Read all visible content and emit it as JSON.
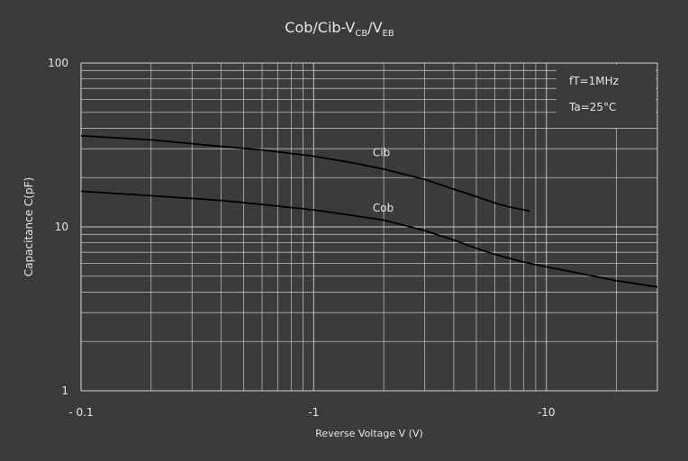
{
  "chart_data": {
    "type": "line",
    "title": "Cob/Cib-V",
    "title_sub1": "CB",
    "title_mid": "/V",
    "title_sub2": "EB",
    "ylabel": "Capacitance  C(pF)",
    "xlabel": "Reverse Voltage  V (V)",
    "x_scale": "log",
    "y_scale": "log",
    "xlim": [
      -0.1,
      -30
    ],
    "ylim": [
      1,
      100
    ],
    "x_ticks": [
      "- 0.1",
      "-1",
      "-10"
    ],
    "y_ticks": [
      "100",
      "10",
      "1"
    ],
    "grid": true,
    "annotations": [
      "fT=1MHz",
      "Ta=25°C"
    ],
    "footnote": "",
    "series": [
      {
        "name": "Cib",
        "x": [
          -0.1,
          -0.2,
          -0.4,
          -0.6,
          -1,
          -1.5,
          -2,
          -3,
          -4,
          -5,
          -6,
          -7,
          -8.5
        ],
        "y": [
          36,
          34,
          31,
          29.5,
          27,
          24.5,
          22.5,
          19.5,
          17,
          15.3,
          14,
          13.2,
          12.5
        ]
      },
      {
        "name": "Cob",
        "x": [
          -0.1,
          -0.2,
          -0.4,
          -0.6,
          -1,
          -1.5,
          -2,
          -3,
          -4,
          -5,
          -6,
          -8,
          -10,
          -15,
          -20,
          -30
        ],
        "y": [
          16.5,
          15.5,
          14.5,
          13.7,
          12.7,
          11.7,
          11,
          9.5,
          8.3,
          7.4,
          6.8,
          6.1,
          5.7,
          5.1,
          4.7,
          4.3
        ]
      }
    ],
    "colors": {
      "background": "#3b3b3b",
      "grid": "#cfcfcf",
      "line": "#000000",
      "text": "#e6e6e6"
    }
  }
}
